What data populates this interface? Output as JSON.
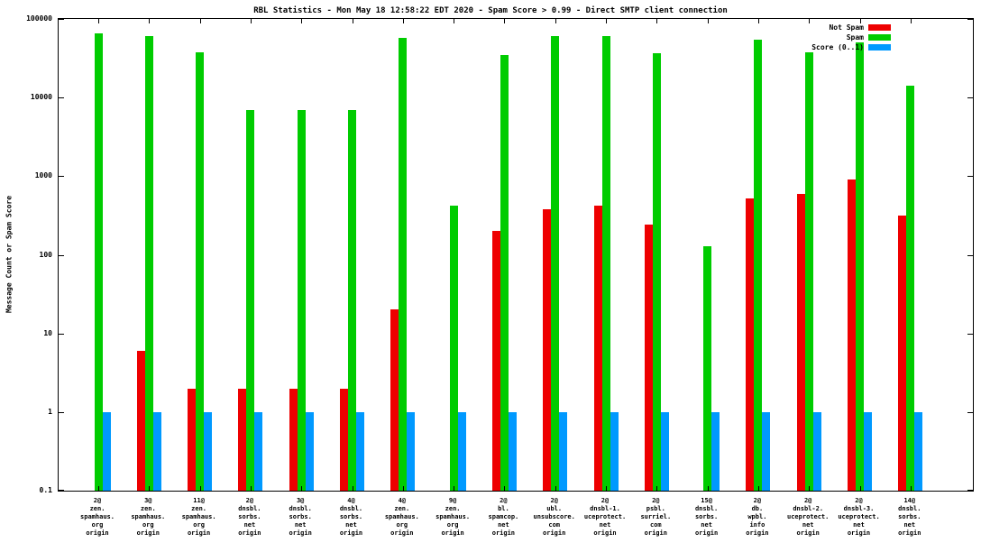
{
  "chart_data": {
    "type": "bar",
    "title": "RBL Statistics - Mon May 18 12:58:22 EDT 2020 - Spam Score > 0.99 - Direct SMTP client connection",
    "xlabel": "",
    "ylabel": "Message Count or Spam Score",
    "yscale": "log",
    "ylim": [
      0.1,
      100000
    ],
    "yticks": [
      0.1,
      1,
      10,
      100,
      1000,
      10000,
      100000
    ],
    "ytick_labels": [
      "0.1",
      "1",
      "10",
      "100",
      "1000",
      "10000",
      "100000"
    ],
    "grid": false,
    "legend_position": "top-right",
    "categories": [
      [
        "2@",
        "zen.",
        "spamhaus.",
        "org",
        "origin"
      ],
      [
        "3@",
        "zen.",
        "spamhaus.",
        "org",
        "origin"
      ],
      [
        "11@",
        "zen.",
        "spamhaus.",
        "org",
        "origin"
      ],
      [
        "2@",
        "dnsbl.",
        "sorbs.",
        "net",
        "origin"
      ],
      [
        "3@",
        "dnsbl.",
        "sorbs.",
        "net",
        "origin"
      ],
      [
        "4@",
        "dnsbl.",
        "sorbs.",
        "net",
        "origin"
      ],
      [
        "4@",
        "zen.",
        "spamhaus.",
        "org",
        "origin"
      ],
      [
        "9@",
        "zen.",
        "spamhaus.",
        "org",
        "origin"
      ],
      [
        "2@",
        "bl.",
        "spamcop.",
        "net",
        "origin"
      ],
      [
        "2@",
        "ubl.",
        "unsubscore.",
        "com",
        "origin"
      ],
      [
        "2@",
        "dnsbl-1.",
        "uceprotect.",
        "net",
        "origin"
      ],
      [
        "2@",
        "psbl.",
        "surriel.",
        "com",
        "origin"
      ],
      [
        "15@",
        "dnsbl.",
        "sorbs.",
        "net",
        "origin"
      ],
      [
        "2@",
        "db.",
        "wpbl.",
        "info",
        "origin"
      ],
      [
        "2@",
        "dnsbl-2.",
        "uceprotect.",
        "net",
        "origin"
      ],
      [
        "2@",
        "dnsbl-3.",
        "uceprotect.",
        "net",
        "origin"
      ],
      [
        "14@",
        "dnsbl.",
        "sorbs.",
        "net",
        "origin"
      ]
    ],
    "series": [
      {
        "name": "Not Spam",
        "color": "#ee0000",
        "values": [
          null,
          6,
          2,
          2,
          2,
          2,
          20,
          null,
          200,
          380,
          420,
          240,
          null,
          520,
          600,
          900,
          320
        ]
      },
      {
        "name": "Spam",
        "color": "#00cc00",
        "values": [
          65000,
          60000,
          38000,
          7000,
          7000,
          7000,
          58000,
          420,
          35000,
          60000,
          60000,
          37000,
          130,
          55000,
          38000,
          50000,
          14000
        ]
      },
      {
        "name": "Score (0..1)",
        "color": "#0099ff",
        "values": [
          1,
          1,
          1,
          1,
          1,
          1,
          1,
          1,
          1,
          1,
          1,
          1,
          1,
          1,
          1,
          1,
          1
        ]
      }
    ]
  }
}
